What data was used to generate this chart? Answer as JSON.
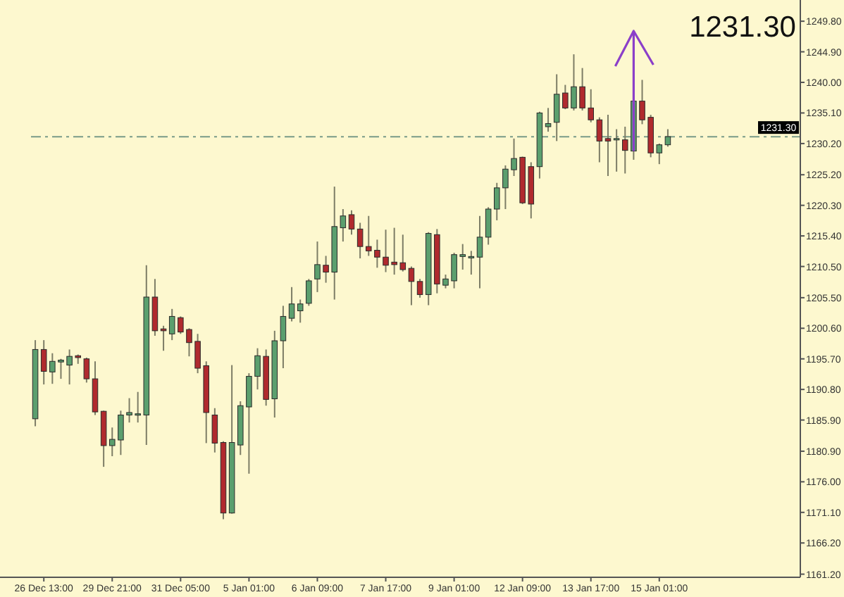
{
  "chart_data": {
    "type": "candlestick",
    "categories": [
      null,
      "26 Dec 13:00",
      null,
      null,
      null,
      null,
      null,
      null,
      null,
      "29 Dec 21:00",
      null,
      null,
      null,
      null,
      null,
      null,
      null,
      "31 Dec 05:00",
      null,
      null,
      null,
      null,
      null,
      null,
      null,
      "5 Jan 01:00",
      null,
      null,
      null,
      null,
      null,
      null,
      null,
      "6 Jan 09:00",
      null,
      null,
      null,
      null,
      null,
      null,
      null,
      "7 Jan 17:00",
      null,
      null,
      null,
      null,
      null,
      null,
      null,
      "9 Jan 01:00",
      null,
      null,
      null,
      null,
      null,
      null,
      null,
      "12 Jan 09:00",
      null,
      null,
      null,
      null,
      null,
      null,
      null,
      "13 Jan 17:00",
      null,
      null,
      null,
      null,
      null,
      null,
      null,
      "15 Jan 01:00",
      null,
      null,
      null,
      null,
      null,
      null,
      null,
      null,
      null,
      null,
      null,
      null,
      null,
      null,
      null,
      null
    ],
    "ohlc": [
      [
        1186.1,
        1198.7,
        1184.9,
        1197.2
      ],
      [
        1197.2,
        1198.7,
        1191.6,
        1193.7
      ],
      [
        1193.6,
        1196.6,
        1191.7,
        1195.3
      ],
      [
        1195.2,
        1195.7,
        1192.5,
        1195.5
      ],
      [
        1194.7,
        1197.2,
        1191.6,
        1196.1
      ],
      [
        1196.2,
        1196.4,
        1194.9,
        1195.9
      ],
      [
        1195.7,
        1195.9,
        1191.9,
        1192.5
      ],
      [
        1192.5,
        1195.3,
        1186.7,
        1187.2
      ],
      [
        1187.3,
        1187.4,
        1178.4,
        1181.8
      ],
      [
        1181.8,
        1184.7,
        1180.1,
        1182.8
      ],
      [
        1182.7,
        1187.4,
        1180.3,
        1186.7
      ],
      [
        1186.7,
        1189.4,
        1185.5,
        1187.1
      ],
      [
        1186.8,
        1190.4,
        1185.5,
        1186.9
      ],
      [
        1186.7,
        1210.7,
        1181.9,
        1205.6
      ],
      [
        1205.6,
        1208.5,
        1199.4,
        1200.2
      ],
      [
        1200.5,
        1201.0,
        1197.0,
        1200.2
      ],
      [
        1199.7,
        1203.7,
        1198.7,
        1202.5
      ],
      [
        1202.3,
        1202.5,
        1199.7,
        1200.0
      ],
      [
        1200.4,
        1200.6,
        1196.1,
        1198.3
      ],
      [
        1198.5,
        1199.7,
        1193.4,
        1194.2
      ],
      [
        1194.6,
        1195.3,
        1182.2,
        1187.1
      ],
      [
        1186.7,
        1187.8,
        1180.7,
        1182.2
      ],
      [
        1182.3,
        1182.5,
        1170.0,
        1171.0
      ],
      [
        1171.0,
        1194.7,
        1170.9,
        1182.3
      ],
      [
        1181.9,
        1188.9,
        1180.3,
        1188.2
      ],
      [
        1188.0,
        1193.4,
        1177.3,
        1192.9
      ],
      [
        1192.9,
        1197.4,
        1190.8,
        1196.2
      ],
      [
        1196.1,
        1197.2,
        1188.2,
        1189.2
      ],
      [
        1189.3,
        1200.2,
        1186.3,
        1198.6
      ],
      [
        1198.6,
        1204.2,
        1194.2,
        1202.5
      ],
      [
        1202.2,
        1207.2,
        1201.7,
        1204.5
      ],
      [
        1203.4,
        1205.2,
        1201.5,
        1204.5
      ],
      [
        1204.6,
        1208.5,
        1204.2,
        1208.2
      ],
      [
        1208.5,
        1214.5,
        1206.4,
        1210.8
      ],
      [
        1210.7,
        1212.2,
        1207.9,
        1209.6
      ],
      [
        1209.6,
        1223.3,
        1205.2,
        1216.9
      ],
      [
        1216.7,
        1219.7,
        1214.5,
        1218.6
      ],
      [
        1218.8,
        1219.5,
        1215.6,
        1216.5
      ],
      [
        1216.5,
        1217.5,
        1211.8,
        1213.7
      ],
      [
        1213.7,
        1218.6,
        1212.2,
        1213.0
      ],
      [
        1213.1,
        1214.8,
        1210.3,
        1212.0
      ],
      [
        1212.0,
        1216.4,
        1209.6,
        1210.7
      ],
      [
        1211.2,
        1216.7,
        1209.2,
        1210.8
      ],
      [
        1211.1,
        1215.6,
        1209.7,
        1210.0
      ],
      [
        1210.2,
        1210.5,
        1204.3,
        1208.1
      ],
      [
        1208.1,
        1208.5,
        1205.5,
        1206.0
      ],
      [
        1206.0,
        1216.0,
        1204.3,
        1215.8
      ],
      [
        1215.6,
        1216.5,
        1206.2,
        1207.7
      ],
      [
        1207.5,
        1209.2,
        1207.0,
        1208.5
      ],
      [
        1208.2,
        1212.7,
        1207.0,
        1212.4
      ],
      [
        1212.1,
        1214.1,
        1210.0,
        1212.4
      ],
      [
        1212.0,
        1213.0,
        1209.2,
        1212.1
      ],
      [
        1212.0,
        1218.6,
        1207.0,
        1215.2
      ],
      [
        1215.2,
        1220.0,
        1214.0,
        1219.7
      ],
      [
        1219.7,
        1223.9,
        1217.9,
        1223.1
      ],
      [
        1223.1,
        1226.7,
        1219.7,
        1226.1
      ],
      [
        1226.0,
        1231.0,
        1225.0,
        1227.8
      ],
      [
        1228.0,
        1228.1,
        1220.5,
        1220.7
      ],
      [
        1226.5,
        1227.2,
        1218.2,
        1220.5
      ],
      [
        1226.5,
        1235.3,
        1224.6,
        1235.1
      ],
      [
        1232.9,
        1235.9,
        1232.1,
        1233.4
      ],
      [
        1233.6,
        1241.3,
        1230.6,
        1238.1
      ],
      [
        1238.3,
        1239.6,
        1235.7,
        1235.9
      ],
      [
        1235.9,
        1244.5,
        1235.5,
        1239.3
      ],
      [
        1239.3,
        1242.3,
        1235.5,
        1235.9
      ],
      [
        1235.9,
        1238.9,
        1233.6,
        1234.0
      ],
      [
        1234.0,
        1234.4,
        1227.2,
        1230.6
      ],
      [
        1231.0,
        1234.8,
        1225.0,
        1230.6
      ],
      [
        1230.8,
        1232.5,
        1225.7,
        1231.0
      ],
      [
        1230.8,
        1232.9,
        1225.4,
        1229.1
      ],
      [
        1229.0,
        1237.2,
        1227.6,
        1237.0
      ],
      [
        1237.0,
        1240.4,
        1233.3,
        1234.0
      ],
      [
        1234.4,
        1234.8,
        1228.0,
        1228.7
      ],
      [
        1228.7,
        1230.2,
        1226.9,
        1230.0
      ],
      [
        1230.0,
        1232.5,
        1229.7,
        1231.3
      ],
      null,
      null,
      null,
      null,
      null,
      null,
      null,
      null,
      null,
      null,
      null,
      null,
      null,
      null,
      null
    ],
    "colors": [
      "#5b9f6e",
      "#b02a2e",
      "#5b9f6e",
      "#5b9f6e",
      "#5b9f6e",
      "#b02a2e",
      "#b02a2e",
      "#b02a2e",
      "#b02a2e",
      "#5b9f6e",
      "#5b9f6e",
      "#5b9f6e",
      "#5b9f6e",
      "#5b9f6e",
      "#b02a2e",
      "#b02a2e",
      "#5b9f6e",
      "#b02a2e",
      "#b02a2e",
      "#b02a2e",
      "#b02a2e",
      "#b02a2e",
      "#b02a2e",
      "#5b9f6e",
      "#5b9f6e",
      "#5b9f6e",
      "#5b9f6e",
      "#b02a2e",
      "#5b9f6e",
      "#5b9f6e",
      "#5b9f6e",
      "#5b9f6e",
      "#5b9f6e",
      "#5b9f6e",
      "#b02a2e",
      "#5b9f6e",
      "#5b9f6e",
      "#b02a2e",
      "#b02a2e",
      "#b02a2e",
      "#b02a2e",
      "#b02a2e",
      "#b02a2e",
      "#b02a2e",
      "#b02a2e",
      "#b02a2e",
      "#5b9f6e",
      "#b02a2e",
      "#5b9f6e",
      "#5b9f6e",
      "#5b9f6e",
      "#5b9f6e",
      "#5b9f6e",
      "#5b9f6e",
      "#5b9f6e",
      "#5b9f6e",
      "#5b9f6e",
      "#b02a2e",
      "#b02a2e",
      "#5b9f6e",
      "#5b9f6e",
      "#5b9f6e",
      "#b02a2e",
      "#5b9f6e",
      "#b02a2e",
      "#b02a2e",
      "#b02a2e",
      "#b02a2e",
      "#5b9f6e",
      "#b02a2e",
      "#5b9f6e",
      "#b02a2e",
      "#b02a2e",
      "#5b9f6e",
      "#5b9f6e",
      null,
      null,
      null,
      null,
      null,
      null,
      null,
      null,
      null,
      null,
      null,
      null,
      null,
      null,
      null
    ],
    "ylim": [
      1160.7,
      1253.2
    ],
    "yticks": [
      {
        "value": 1249.8,
        "label": "1249.80"
      },
      {
        "value": 1244.9,
        "label": "1244.90"
      },
      {
        "value": 1240,
        "label": "1240.00"
      },
      {
        "value": 1235.1,
        "label": "1235.10"
      },
      {
        "value": 1230.2,
        "label": "1230.20"
      },
      {
        "value": 1225.2,
        "label": "1225.20"
      },
      {
        "value": 1220.3,
        "label": "1220.30"
      },
      {
        "value": 1215.4,
        "label": "1215.40"
      },
      {
        "value": 1210.5,
        "label": "1210.50"
      },
      {
        "value": 1205.5,
        "label": "1205.50"
      },
      {
        "value": 1200.6,
        "label": "1200.60"
      },
      {
        "value": 1195.7,
        "label": "1195.70"
      },
      {
        "value": 1190.8,
        "label": "1190.80"
      },
      {
        "value": 1185.9,
        "label": "1185.90"
      },
      {
        "value": 1180.9,
        "label": "1180.90"
      },
      {
        "value": 1176,
        "label": "1176.00"
      },
      {
        "value": 1171.1,
        "label": "1171.10"
      },
      {
        "value": 1166.2,
        "label": "1166.20"
      },
      {
        "value": 1161.2,
        "label": "1161.20"
      }
    ],
    "ref_lines": [
      {
        "axis": "y",
        "value": 1231.3,
        "label": "1231.30",
        "color": "#7a9a88",
        "line_style": "dashed"
      }
    ],
    "annotations": [
      "1231.30"
    ],
    "grid": false
  }
}
